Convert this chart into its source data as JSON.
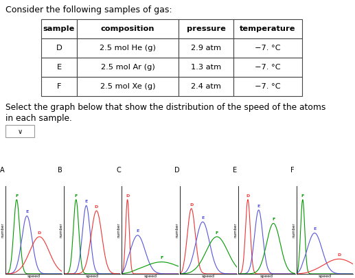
{
  "title": "Consider the following samples of gas:",
  "table_headers": [
    "sample",
    "composition",
    "pressure",
    "temperature"
  ],
  "table_rows": [
    [
      "D",
      "2.5 mol He (g)",
      "2.9 atm",
      "−7. °C"
    ],
    [
      "E",
      "2.5 mol Ar (g)",
      "1.3 atm",
      "−7. °C"
    ],
    [
      "F",
      "2.5 mol Xe (g)",
      "2.4 atm",
      "−7. °C"
    ]
  ],
  "select1": "Select the graph below that show the distribution of the ",
  "select_blue": "speed of the atoms",
  "select2": " in each sample.",
  "graph_labels": [
    "A",
    "B",
    "C",
    "D",
    "E",
    "F"
  ],
  "col_D": "#ee3333",
  "col_E": "#5555dd",
  "col_F": "#009900",
  "bg": "#ffffff",
  "fg": "#000000",
  "blue": "#0055cc",
  "graphs": [
    {
      "name": "A",
      "curves": [
        {
          "id": "F",
          "peak": 0.2,
          "ht": 1.0,
          "wd": 0.052
        },
        {
          "id": "E",
          "peak": 0.38,
          "ht": 0.78,
          "wd": 0.09
        },
        {
          "id": "D",
          "peak": 0.6,
          "ht": 0.5,
          "wd": 0.17
        }
      ]
    },
    {
      "name": "B",
      "curves": [
        {
          "id": "F",
          "peak": 0.22,
          "ht": 1.0,
          "wd": 0.048
        },
        {
          "id": "E",
          "peak": 0.4,
          "ht": 0.92,
          "wd": 0.068
        },
        {
          "id": "D",
          "peak": 0.58,
          "ht": 0.85,
          "wd": 0.095
        }
      ]
    },
    {
      "name": "C",
      "curves": [
        {
          "id": "D",
          "peak": 0.1,
          "ht": 1.0,
          "wd": 0.032
        },
        {
          "id": "E",
          "peak": 0.28,
          "ht": 0.52,
          "wd": 0.13
        },
        {
          "id": "F",
          "peak": 0.7,
          "ht": 0.16,
          "wd": 0.31
        }
      ]
    },
    {
      "name": "D",
      "curves": [
        {
          "id": "D",
          "peak": 0.2,
          "ht": 0.88,
          "wd": 0.07
        },
        {
          "id": "E",
          "peak": 0.4,
          "ht": 0.7,
          "wd": 0.12
        },
        {
          "id": "F",
          "peak": 0.65,
          "ht": 0.5,
          "wd": 0.19
        }
      ]
    },
    {
      "name": "E",
      "curves": [
        {
          "id": "D",
          "peak": 0.17,
          "ht": 1.0,
          "wd": 0.042
        },
        {
          "id": "E",
          "peak": 0.36,
          "ht": 0.86,
          "wd": 0.072
        },
        {
          "id": "F",
          "peak": 0.62,
          "ht": 0.68,
          "wd": 0.12
        }
      ]
    },
    {
      "name": "F",
      "curves": [
        {
          "id": "F",
          "peak": 0.11,
          "ht": 1.0,
          "wd": 0.036
        },
        {
          "id": "E",
          "peak": 0.32,
          "ht": 0.55,
          "wd": 0.13
        },
        {
          "id": "D",
          "peak": 0.75,
          "ht": 0.2,
          "wd": 0.27
        }
      ]
    }
  ]
}
